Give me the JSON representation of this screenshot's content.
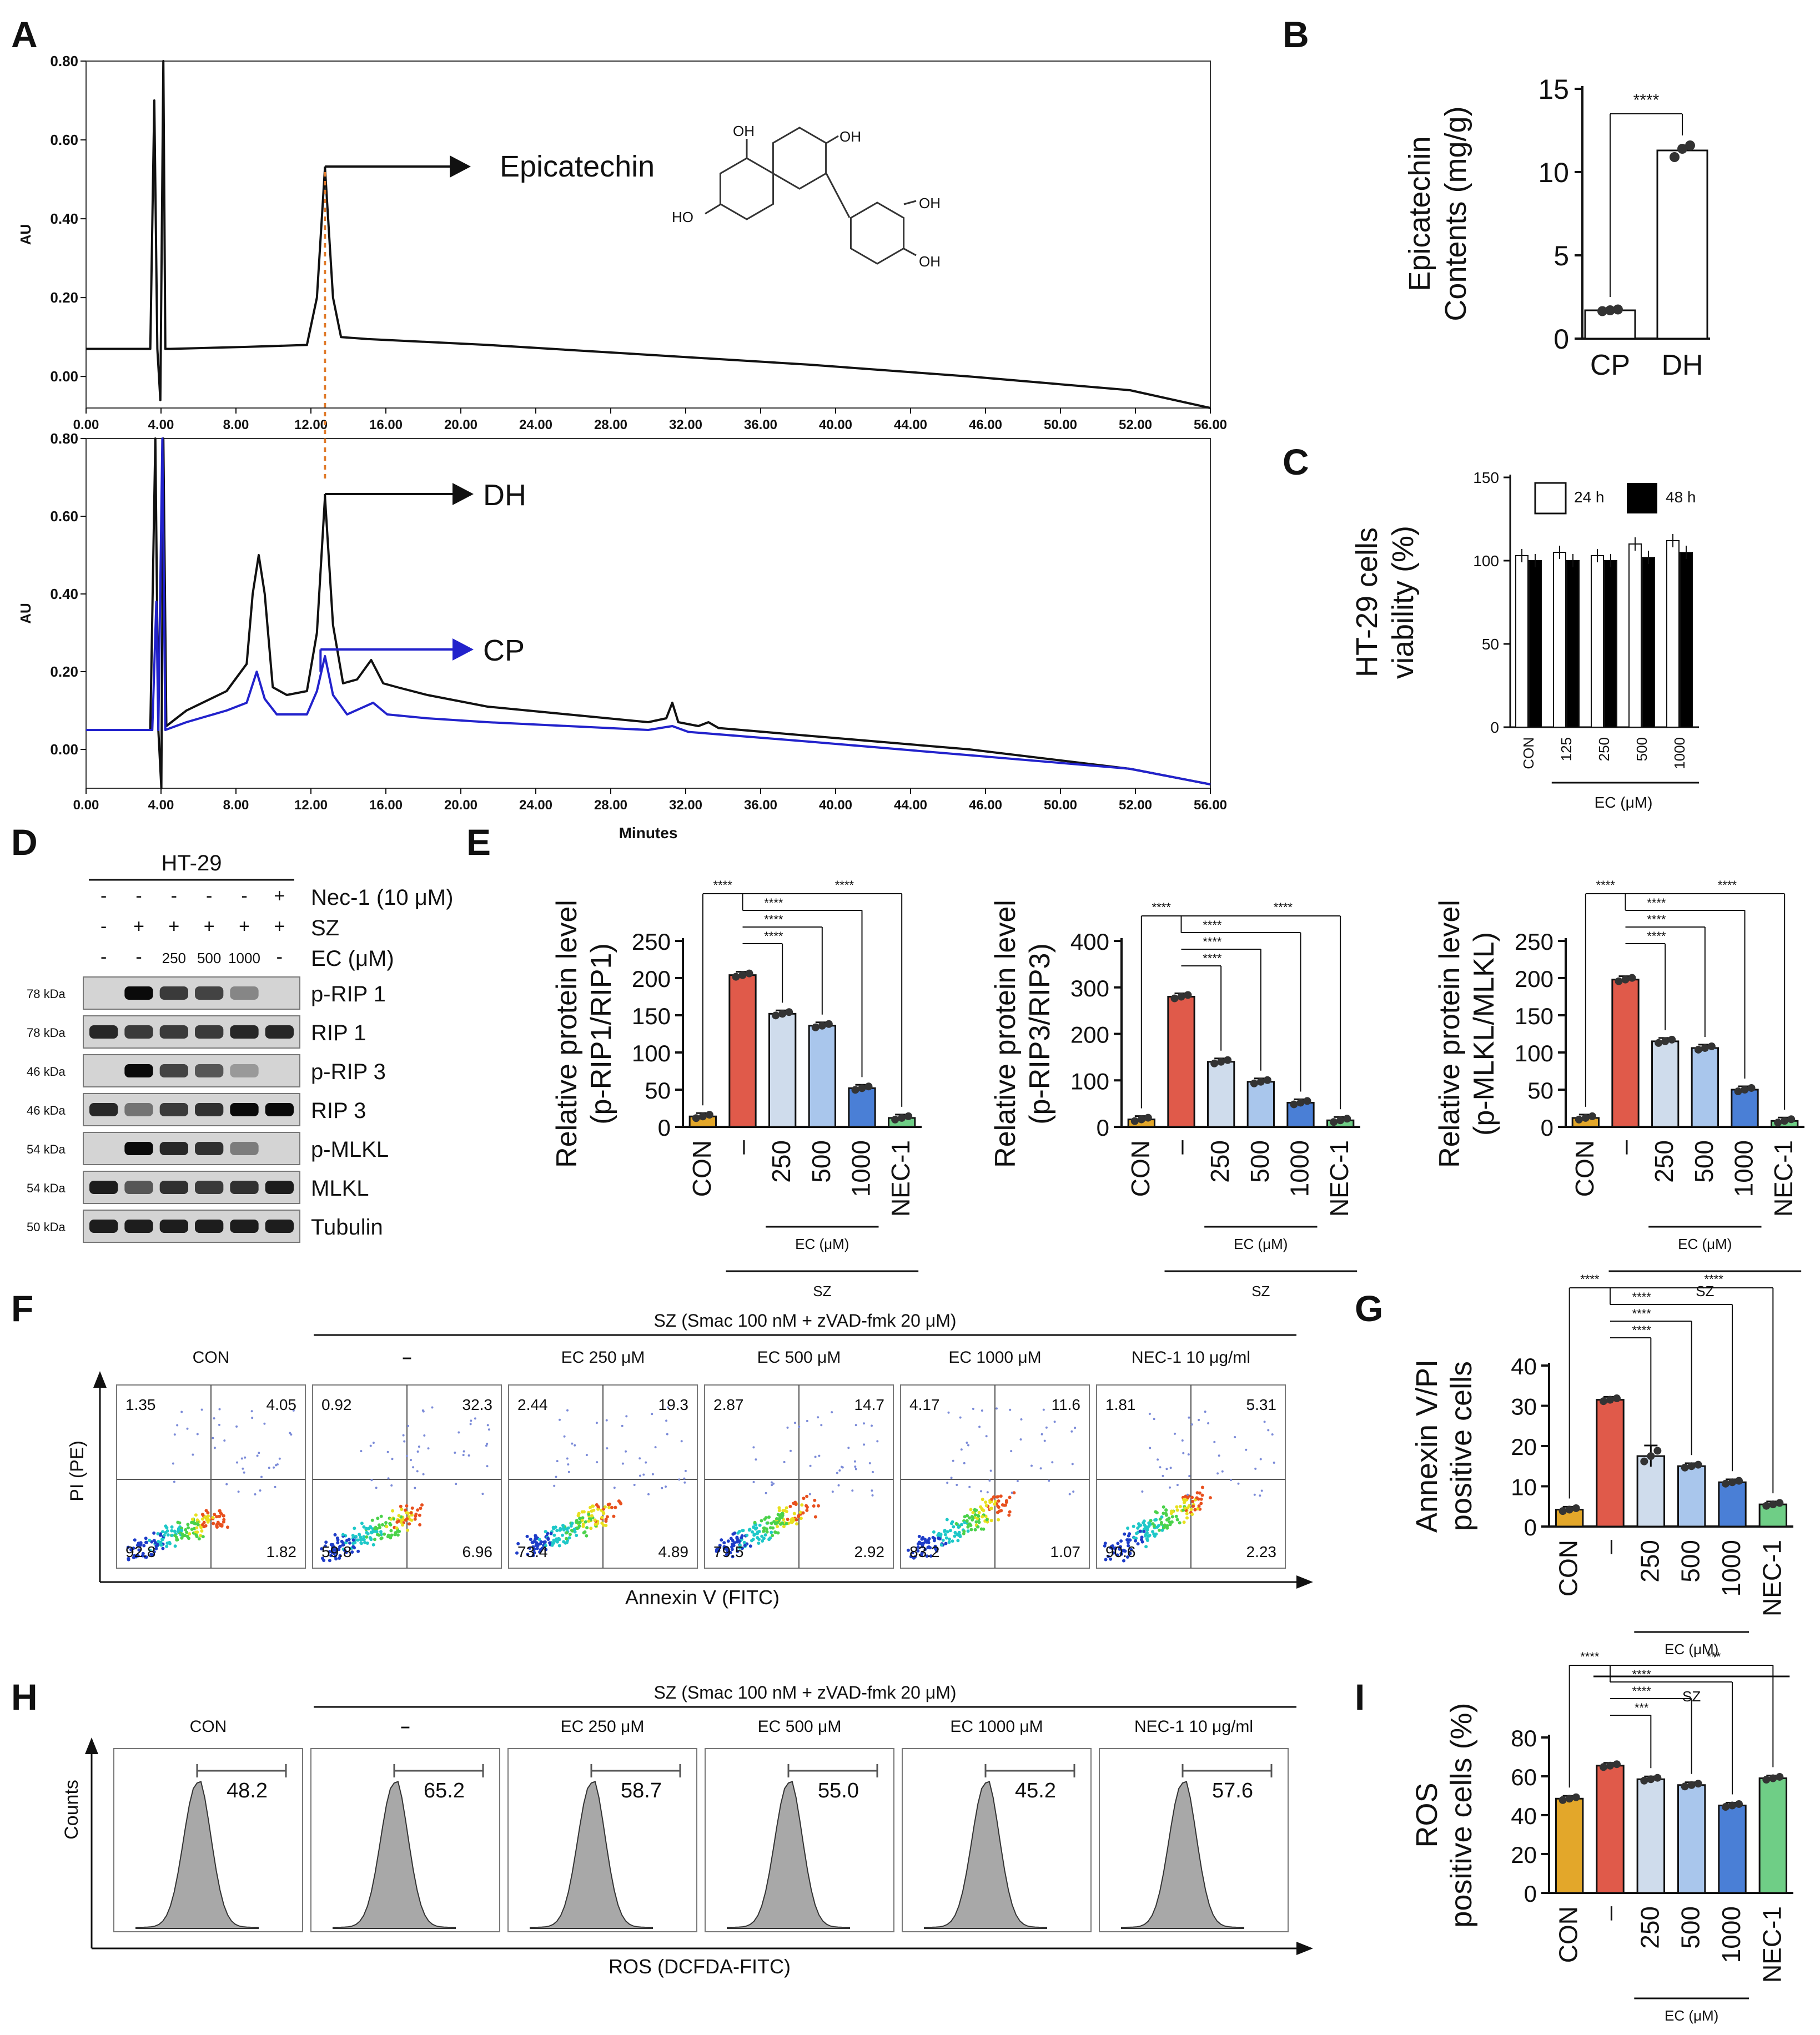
{
  "panel_labels": {
    "A": "A",
    "B": "B",
    "C": "C",
    "D": "D",
    "E": "E",
    "F": "F",
    "G": "G",
    "H": "H",
    "I": "I"
  },
  "chart_data": [
    {
      "panel": "A",
      "type": "line",
      "ylabel": "AU",
      "xlabel": "Minutes",
      "xlim": [
        0,
        56
      ],
      "ylim_top": [
        -0.08,
        0.8
      ],
      "ylim_bottom": [
        -0.1,
        0.8
      ],
      "x_ticks": [
        "0.00",
        "4.00",
        "8.00",
        "12.00",
        "16.00",
        "20.00",
        "24.00",
        "28.00",
        "32.00",
        "36.00",
        "40.00",
        "44.00",
        "46.00",
        "50.00",
        "52.00",
        "56.00"
      ],
      "y_ticks": [
        "0.00",
        "0.20",
        "0.40",
        "0.60",
        "0.80"
      ],
      "annotations": {
        "epicatechin": "Epicatechin",
        "dh": "DH",
        "cp": "CP"
      },
      "structure_labels": [
        "OH",
        "OH",
        "HO",
        "OH",
        "OH"
      ],
      "series": [
        {
          "name": "Epicatechin standard",
          "color": "#111111",
          "points": [
            [
              0,
              0.07
            ],
            [
              3.2,
              0.07
            ],
            [
              3.4,
              0.7
            ],
            [
              3.55,
              0.07
            ],
            [
              3.7,
              -0.06
            ],
            [
              3.85,
              0.8
            ],
            [
              3.95,
              0.07
            ],
            [
              4.2,
              0.07
            ],
            [
              8,
              0.075
            ],
            [
              11,
              0.08
            ],
            [
              11.5,
              0.2
            ],
            [
              11.9,
              0.53
            ],
            [
              12.3,
              0.2
            ],
            [
              12.7,
              0.1
            ],
            [
              14,
              0.095
            ],
            [
              20,
              0.08
            ],
            [
              28,
              0.055
            ],
            [
              36,
              0.03
            ],
            [
              44,
              0.0
            ],
            [
              52,
              -0.035
            ],
            [
              56,
              -0.08
            ]
          ]
        },
        {
          "name": "DH",
          "color": "#111111",
          "points": [
            [
              0,
              0.05
            ],
            [
              3.2,
              0.05
            ],
            [
              3.45,
              0.8
            ],
            [
              3.6,
              0.05
            ],
            [
              3.75,
              -0.1
            ],
            [
              3.85,
              0.8
            ],
            [
              4.0,
              0.06
            ],
            [
              5,
              0.1
            ],
            [
              7,
              0.15
            ],
            [
              8,
              0.22
            ],
            [
              8.3,
              0.4
            ],
            [
              8.6,
              0.5
            ],
            [
              8.9,
              0.4
            ],
            [
              9.3,
              0.16
            ],
            [
              10,
              0.14
            ],
            [
              11,
              0.15
            ],
            [
              11.5,
              0.3
            ],
            [
              11.9,
              0.65
            ],
            [
              12.3,
              0.32
            ],
            [
              12.8,
              0.17
            ],
            [
              13.5,
              0.18
            ],
            [
              14.2,
              0.23
            ],
            [
              14.8,
              0.17
            ],
            [
              15.5,
              0.16
            ],
            [
              17,
              0.14
            ],
            [
              19,
              0.12
            ],
            [
              20,
              0.11
            ],
            [
              24,
              0.09
            ],
            [
              28,
              0.07
            ],
            [
              28.9,
              0.08
            ],
            [
              29.2,
              0.12
            ],
            [
              29.5,
              0.07
            ],
            [
              30.5,
              0.06
            ],
            [
              31,
              0.07
            ],
            [
              31.5,
              0.055
            ],
            [
              36,
              0.035
            ],
            [
              44,
              0.0
            ],
            [
              52,
              -0.05
            ],
            [
              56,
              -0.09
            ]
          ]
        },
        {
          "name": "CP",
          "color": "#2222cc",
          "points": [
            [
              0,
              0.05
            ],
            [
              3.3,
              0.05
            ],
            [
              3.5,
              0.38
            ],
            [
              3.6,
              0.05
            ],
            [
              3.8,
              0.8
            ],
            [
              3.95,
              0.05
            ],
            [
              5,
              0.07
            ],
            [
              7,
              0.1
            ],
            [
              8,
              0.12
            ],
            [
              8.5,
              0.2
            ],
            [
              8.9,
              0.13
            ],
            [
              9.5,
              0.09
            ],
            [
              11,
              0.09
            ],
            [
              11.5,
              0.15
            ],
            [
              11.9,
              0.24
            ],
            [
              12.3,
              0.14
            ],
            [
              13,
              0.09
            ],
            [
              14.3,
              0.12
            ],
            [
              15,
              0.09
            ],
            [
              17,
              0.08
            ],
            [
              20,
              0.07
            ],
            [
              28,
              0.05
            ],
            [
              29.2,
              0.06
            ],
            [
              30,
              0.045
            ],
            [
              36,
              0.02
            ],
            [
              44,
              -0.015
            ],
            [
              52,
              -0.05
            ],
            [
              56,
              -0.09
            ]
          ]
        }
      ]
    },
    {
      "panel": "B",
      "type": "bar",
      "ylabel": "Epicatechin Contents (mg/g)",
      "categories": [
        "CP",
        "DH"
      ],
      "values": [
        1.7,
        11.3
      ],
      "points": [
        [
          1.65,
          1.7,
          1.75
        ],
        [
          10.9,
          11.4,
          11.6
        ]
      ],
      "ylim": [
        0,
        15
      ],
      "y_ticks": [
        "0",
        "5",
        "10",
        "15"
      ],
      "significance": "****"
    },
    {
      "panel": "C",
      "type": "bar",
      "ylabel": "HT-29 cells viability (%)",
      "categories": [
        "CON",
        "125",
        "250",
        "500",
        "1000"
      ],
      "group_label": "EC (μM)",
      "ylim": [
        0,
        150
      ],
      "y_ticks": [
        "0",
        "50",
        "100",
        "150"
      ],
      "legend": [
        "24 h",
        "48 h"
      ],
      "series": [
        {
          "name": "24 h",
          "values": [
            103,
            105,
            103,
            110,
            112
          ]
        },
        {
          "name": "48 h",
          "values": [
            100,
            100,
            100,
            102,
            105
          ]
        }
      ]
    },
    {
      "panel": "D",
      "type": "table",
      "title": "HT-29",
      "treatments": [
        {
          "label": "Nec-1 (10 μM)",
          "values": [
            "-",
            "-",
            "-",
            "-",
            "-",
            "+"
          ]
        },
        {
          "label": "SZ",
          "values": [
            "-",
            "+",
            "+",
            "+",
            "+",
            "+"
          ]
        },
        {
          "label": "EC (μM)",
          "values": [
            "-",
            "-",
            "250",
            "500",
            "1000",
            "-"
          ]
        }
      ],
      "blots": [
        {
          "mw": "78 kDa",
          "name": "p-RIP 1",
          "intensity": [
            0.0,
            1.0,
            0.75,
            0.7,
            0.35,
            0.0
          ]
        },
        {
          "mw": "78 kDa",
          "name": "RIP 1",
          "intensity": [
            0.85,
            0.75,
            0.75,
            0.75,
            0.85,
            0.85
          ]
        },
        {
          "mw": "46 kDa",
          "name": "p-RIP 3",
          "intensity": [
            0.0,
            1.0,
            0.7,
            0.6,
            0.25,
            0.0
          ]
        },
        {
          "mw": "46 kDa",
          "name": "RIP 3",
          "intensity": [
            0.85,
            0.45,
            0.75,
            0.8,
            1.0,
            1.0
          ]
        },
        {
          "mw": "54 kDa",
          "name": "p-MLKL",
          "intensity": [
            0.0,
            1.0,
            0.85,
            0.8,
            0.4,
            0.0
          ]
        },
        {
          "mw": "54 kDa",
          "name": "MLKL",
          "intensity": [
            0.9,
            0.6,
            0.8,
            0.75,
            0.8,
            0.9
          ]
        },
        {
          "mw": "50 kDa",
          "name": "Tubulin",
          "intensity": [
            0.9,
            0.9,
            0.9,
            0.9,
            0.9,
            0.9
          ]
        }
      ]
    },
    {
      "panel": "E1",
      "type": "bar",
      "ylabel": "Relative protein level (p-RIP1/RIP1)",
      "categories": [
        "CON",
        "-",
        "250",
        "500",
        "1000",
        "NEC-1"
      ],
      "values": [
        14,
        204,
        152,
        136,
        52,
        12
      ],
      "ylim": [
        0,
        250
      ],
      "y_ticks": [
        "0",
        "50",
        "100",
        "150",
        "200",
        "250"
      ],
      "group_label": "EC (μM)",
      "treatment_label": "SZ",
      "significance": "****"
    },
    {
      "panel": "E2",
      "type": "bar",
      "ylabel": "Relative protein level (p-RIP3/RIP3)",
      "categories": [
        "CON",
        "-",
        "250",
        "500",
        "1000",
        "NEC-1"
      ],
      "values": [
        16,
        280,
        140,
        97,
        52,
        14
      ],
      "ylim": [
        0,
        400
      ],
      "y_ticks": [
        "0",
        "100",
        "200",
        "300",
        "400"
      ],
      "group_label": "EC (μM)",
      "treatment_label": "SZ",
      "significance": "****"
    },
    {
      "panel": "E3",
      "type": "bar",
      "ylabel": "Relative protein level (p-MLKL/MLKL)",
      "categories": [
        "CON",
        "-",
        "250",
        "500",
        "1000",
        "NEC-1"
      ],
      "values": [
        12,
        198,
        115,
        106,
        50,
        8
      ],
      "ylim": [
        0,
        250
      ],
      "y_ticks": [
        "0",
        "50",
        "100",
        "150",
        "200",
        "250"
      ],
      "group_label": "EC (μM)",
      "treatment_label": "SZ",
      "significance": "****"
    },
    {
      "panel": "F",
      "type": "scatter",
      "title": "SZ (Smac 100 nM + zVAD-fmk 20 μM)",
      "xlabel": "Annexin V (FITC)",
      "ylabel": "PI (PE)",
      "samples": [
        {
          "label": "CON",
          "q": [
            "1.35",
            "4.05",
            "92.8",
            "1.82"
          ]
        },
        {
          "label": "–",
          "q": [
            "0.92",
            "32.3",
            "59.8",
            "6.96"
          ]
        },
        {
          "label": "EC 250 μM",
          "q": [
            "2.44",
            "19.3",
            "73.4",
            "4.89"
          ]
        },
        {
          "label": "EC 500 μM",
          "q": [
            "2.87",
            "14.7",
            "79.5",
            "2.92"
          ]
        },
        {
          "label": "EC 1000 μM",
          "q": [
            "4.17",
            "11.6",
            "83.2",
            "1.07"
          ]
        },
        {
          "label": "NEC-1 10 μg/ml",
          "q": [
            "1.81",
            "5.31",
            "90.6",
            "2.23"
          ]
        }
      ]
    },
    {
      "panel": "G",
      "type": "bar",
      "ylabel": "Annexin V/PI positive cells",
      "categories": [
        "CON",
        "-",
        "250",
        "500",
        "1000",
        "NEC-1"
      ],
      "values": [
        4.2,
        31.5,
        17.5,
        15,
        11,
        5.5
      ],
      "ylim": [
        0,
        40
      ],
      "y_ticks": [
        "0",
        "10",
        "20",
        "30",
        "40"
      ],
      "group_label": "EC (μM)",
      "treatment_label": "SZ",
      "significance": "****"
    },
    {
      "panel": "H",
      "type": "area",
      "title": "SZ (Smac 100 nM + zVAD-fmk 20 μM)",
      "xlabel": "ROS (DCFDA-FITC)",
      "ylabel": "Counts",
      "samples": [
        {
          "label": "CON",
          "value": "48.2"
        },
        {
          "label": "–",
          "value": "65.2"
        },
        {
          "label": "EC 250 μM",
          "value": "58.7"
        },
        {
          "label": "EC 500 μM",
          "value": "55.0"
        },
        {
          "label": "EC 1000 μM",
          "value": "45.2"
        },
        {
          "label": "NEC-1 10 μg/ml",
          "value": "57.6"
        }
      ]
    },
    {
      "panel": "I",
      "type": "bar",
      "ylabel": "ROS positive cells (%)",
      "categories": [
        "CON",
        "-",
        "250",
        "500",
        "1000",
        "NEC-1"
      ],
      "values": [
        48.5,
        65.5,
        58.5,
        55.5,
        45,
        59
      ],
      "ylim": [
        0,
        80
      ],
      "y_ticks": [
        "0",
        "20",
        "40",
        "60",
        "80"
      ],
      "group_label": "EC (μM)",
      "treatment_label": "SZ",
      "sig_labels": [
        "****",
        "***",
        "****",
        "****",
        "***"
      ]
    }
  ],
  "colors": {
    "con": "#e3a72a",
    "sz": "#e05a4a",
    "ec250": "#cfdcec",
    "ec500": "#a9c6ec",
    "ec1000": "#4a7fd6",
    "nec1": "#6fce86",
    "cp_trace": "#2222cc",
    "marker_line": "#e07a2a",
    "dot_plot_low": "#1e3cc8",
    "dot_plot_high": "#e8e01e",
    "histogram_fill": "#a8a8a8"
  }
}
